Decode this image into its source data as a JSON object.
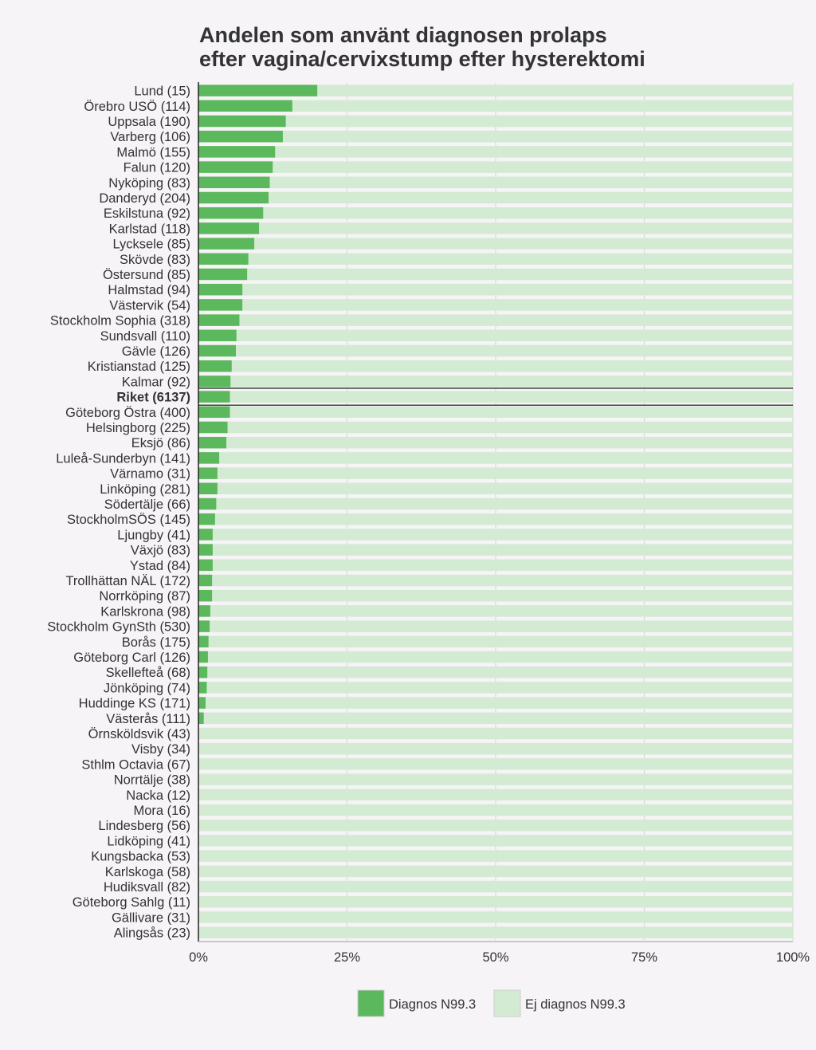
{
  "chart_data": {
    "type": "bar",
    "orientation": "horizontal",
    "stacked": true,
    "title_lines": [
      "Andelen som använt diagnosen prolaps",
      "efter vagina/cervixstump efter hysterektomi"
    ],
    "categories": [
      "Lund (15)",
      "Örebro USÖ (114)",
      "Uppsala (190)",
      "Varberg (106)",
      "Malmö (155)",
      "Falun (120)",
      "Nyköping (83)",
      "Danderyd (204)",
      "Eskilstuna (92)",
      "Karlstad (118)",
      "Lycksele (85)",
      "Skövde (83)",
      "Östersund (85)",
      "Halmstad (94)",
      "Västervik (54)",
      "Stockholm Sophia (318)",
      "Sundsvall (110)",
      "Gävle (126)",
      "Kristianstad (125)",
      "Kalmar (92)",
      "Riket (6137)",
      "Göteborg Östra (400)",
      "Helsingborg (225)",
      "Eksjö (86)",
      "Luleå-Sunderbyn (141)",
      "Värnamo (31)",
      "Linköping (281)",
      "Södertälje (66)",
      "StockholmSÖS (145)",
      "Ljungby (41)",
      "Växjö (83)",
      "Ystad (84)",
      "Trollhättan NÄL (172)",
      "Norrköping (87)",
      "Karlskrona (98)",
      "Stockholm GynSth (530)",
      "Borås (175)",
      "Göteborg Carl (126)",
      "Skellefteå (68)",
      "Jönköping (74)",
      "Huddinge KS (171)",
      "Västerås (111)",
      "Örnsköldsvik (43)",
      "Visby (34)",
      "Sthlm Octavia (67)",
      "Norrtälje (38)",
      "Nacka (12)",
      "Mora (16)",
      "Lindesberg (56)",
      "Lidköping (41)",
      "Kungsbacka (53)",
      "Karlskoga (58)",
      "Hudiksvall (82)",
      "Göteborg Sahlg (11)",
      "Gällivare (31)",
      "Alingsås (23)"
    ],
    "highlight_category": "Riket (6137)",
    "series": [
      {
        "name": "Diagnos N99.3",
        "color": "#5cb85c",
        "values": [
          20.0,
          15.8,
          14.7,
          14.2,
          12.9,
          12.5,
          12.0,
          11.8,
          10.9,
          10.2,
          9.4,
          8.4,
          8.2,
          7.4,
          7.4,
          6.9,
          6.4,
          6.3,
          5.6,
          5.4,
          5.3,
          5.3,
          4.9,
          4.7,
          3.5,
          3.2,
          3.2,
          3.0,
          2.8,
          2.4,
          2.4,
          2.4,
          2.3,
          2.3,
          2.0,
          1.9,
          1.7,
          1.6,
          1.5,
          1.4,
          1.2,
          0.9,
          0,
          0,
          0,
          0,
          0,
          0,
          0,
          0,
          0,
          0,
          0,
          0,
          0,
          0
        ]
      },
      {
        "name": "Ej diagnos N99.3",
        "color": "#d3ebd3",
        "values": [
          80.0,
          84.2,
          85.3,
          85.8,
          87.1,
          87.5,
          88.0,
          88.2,
          89.1,
          89.8,
          90.6,
          91.6,
          91.8,
          92.6,
          92.6,
          93.1,
          93.6,
          93.7,
          94.4,
          94.6,
          94.7,
          94.7,
          95.1,
          95.3,
          96.5,
          96.8,
          96.8,
          97.0,
          97.2,
          97.6,
          97.6,
          97.6,
          97.7,
          97.7,
          98.0,
          98.1,
          98.3,
          98.4,
          98.5,
          98.6,
          98.8,
          99.1,
          100,
          100,
          100,
          100,
          100,
          100,
          100,
          100,
          100,
          100,
          100,
          100,
          100,
          100
        ]
      }
    ],
    "x_ticks": [
      "0%",
      "25%",
      "50%",
      "75%",
      "100%"
    ],
    "xlim": [
      0,
      100
    ],
    "x_unit": "%",
    "grid": true,
    "legend_position": "bottom"
  }
}
